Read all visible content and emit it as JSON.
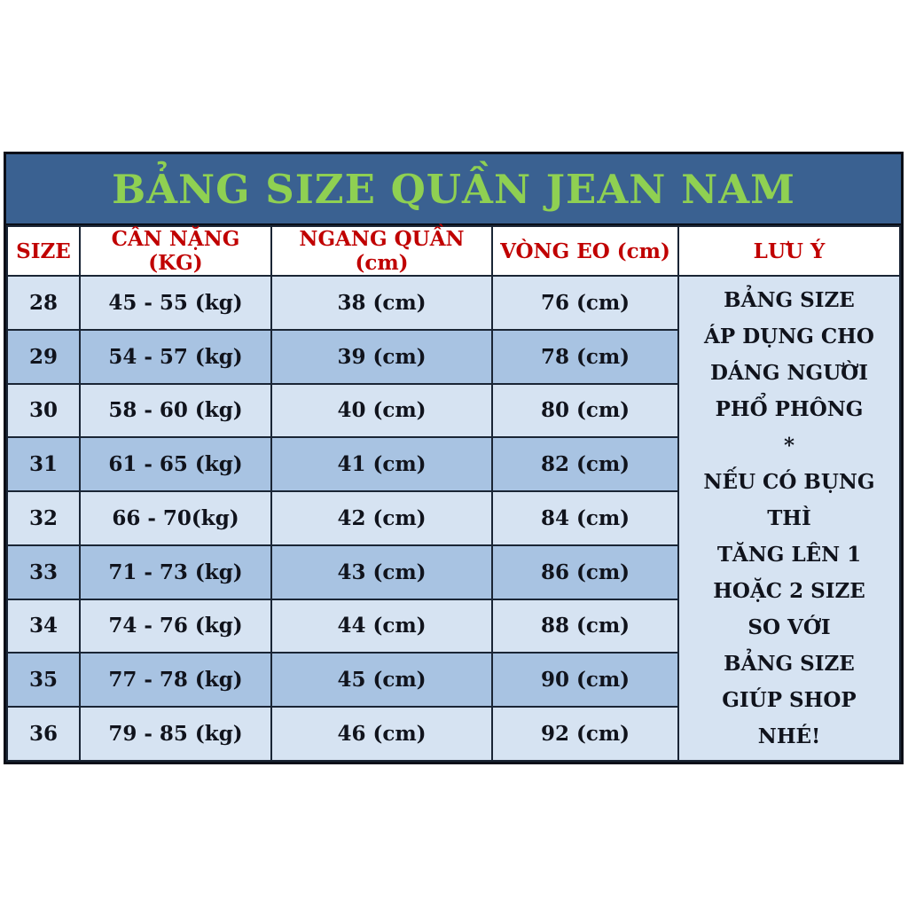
{
  "banner": {
    "title": "BẢNG SIZE QUẦN JEAN NAM"
  },
  "header": {
    "columns": [
      "SIZE",
      "CÂN NẶNG (KG)",
      "NGANG QUẦN (cm)",
      "VÒNG EO (cm)",
      "LƯU Ý"
    ]
  },
  "chart_data": {
    "type": "table",
    "title": "BẢNG SIZE QUẦN JEAN NAM",
    "columns": [
      "SIZE",
      "CÂN NẶNG (KG)",
      "NGANG QUẦN (cm)",
      "VÒNG EO (cm)"
    ],
    "rows": [
      {
        "size": "28",
        "weight": "45 - 55 (kg)",
        "leg_width": "38 (cm)",
        "waist": "76 (cm)"
      },
      {
        "size": "29",
        "weight": "54 - 57 (kg)",
        "leg_width": "39 (cm)",
        "waist": "78 (cm)"
      },
      {
        "size": "30",
        "weight": "58 - 60 (kg)",
        "leg_width": "40 (cm)",
        "waist": "80 (cm)"
      },
      {
        "size": "31",
        "weight": "61 - 65 (kg)",
        "leg_width": "41 (cm)",
        "waist": "82 (cm)"
      },
      {
        "size": "32",
        "weight": "66 - 70(kg)",
        "leg_width": "42 (cm)",
        "waist": "84 (cm)"
      },
      {
        "size": "33",
        "weight": "71 - 73 (kg)",
        "leg_width": "43 (cm)",
        "waist": "86 (cm)"
      },
      {
        "size": "34",
        "weight": "74 - 76 (kg)",
        "leg_width": "44 (cm)",
        "waist": "88 (cm)"
      },
      {
        "size": "35",
        "weight": "77 - 78 (kg)",
        "leg_width": "45 (cm)",
        "waist": "90 (cm)"
      },
      {
        "size": "36",
        "weight": "79 - 85 (kg)",
        "leg_width": "46 (cm)",
        "waist": "92 (cm)"
      }
    ]
  },
  "note": {
    "lines": [
      "BẢNG SIZE",
      "ÁP DỤNG CHO",
      "DÁNG NGƯỜI",
      "PHỔ PHÔNG",
      "*",
      "NẾU CÓ BỤNG",
      "THÌ",
      "TĂNG LÊN 1",
      "HOẶC 2 SIZE",
      "SO VỚI",
      "BẢNG SIZE",
      "GIÚP SHOP",
      "NHÉ!"
    ]
  },
  "colors": {
    "banner_bg": "#3A6191",
    "banner_text": "#8FD052",
    "header_text": "#C00000",
    "row_light_bg": "#D6E3F2",
    "row_dark_bg": "#A8C3E2",
    "waist_text": "#C00000",
    "note_bg": "#C6D9ED",
    "note_text": "#17375D",
    "grid_line": "#1A2535"
  }
}
